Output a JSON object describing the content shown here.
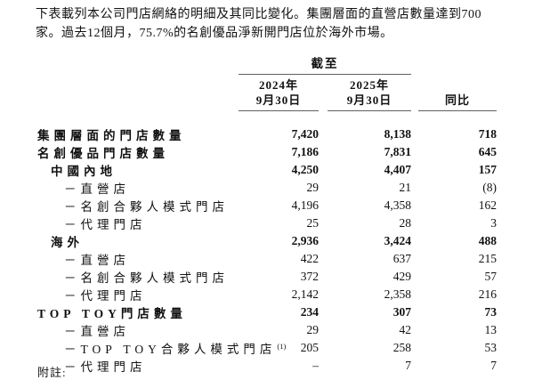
{
  "colors": {
    "text": "#111111",
    "rule": "#5f6062",
    "background": "#ffffff"
  },
  "intro": {
    "lines": [
      "下表載列本公司門店網絡的明細及其同比變化。集團層面的直營店數量達到700",
      "家。過去12個月，75.7%的名創優品淨新開門店位於海外市場。"
    ]
  },
  "table": {
    "spanner_label": "截至",
    "columns": [
      {
        "year": "2024年",
        "date": "9月30日"
      },
      {
        "year": "2025年",
        "date": "9月30日"
      },
      {
        "label": "同比"
      }
    ],
    "rows": [
      {
        "label": "集團層面的門店數量",
        "indent": 0,
        "bold": true,
        "v2024": "7,420",
        "v2025": "8,138",
        "yoy": "718"
      },
      {
        "label": "名創優品門店數量",
        "indent": 0,
        "bold": true,
        "v2024": "7,186",
        "v2025": "7,831",
        "yoy": "645"
      },
      {
        "label": "中國內地",
        "indent": 1,
        "bold": true,
        "v2024": "4,250",
        "v2025": "4,407",
        "yoy": "157"
      },
      {
        "label": "－直營店",
        "indent": 2,
        "bold": false,
        "v2024": "29",
        "v2025": "21",
        "yoy": "(8)"
      },
      {
        "label": "－名創合夥人模式門店",
        "indent": 2,
        "bold": false,
        "v2024": "4,196",
        "v2025": "4,358",
        "yoy": "162"
      },
      {
        "label": "－代理門店",
        "indent": 2,
        "bold": false,
        "v2024": "25",
        "v2025": "28",
        "yoy": "3"
      },
      {
        "label": "海外",
        "indent": 1,
        "bold": true,
        "v2024": "2,936",
        "v2025": "3,424",
        "yoy": "488"
      },
      {
        "label": "－直營店",
        "indent": 2,
        "bold": false,
        "v2024": "422",
        "v2025": "637",
        "yoy": "215"
      },
      {
        "label": "－名創合夥人模式門店",
        "indent": 2,
        "bold": false,
        "v2024": "372",
        "v2025": "429",
        "yoy": "57"
      },
      {
        "label": "－代理門店",
        "indent": 2,
        "bold": false,
        "v2024": "2,142",
        "v2025": "2,358",
        "yoy": "216"
      },
      {
        "label": "TOP TOY門店數量",
        "indent": 0,
        "bold": true,
        "v2024": "234",
        "v2025": "307",
        "yoy": "73"
      },
      {
        "label": "－直營店",
        "indent": 2,
        "bold": false,
        "v2024": "29",
        "v2025": "42",
        "yoy": "13"
      },
      {
        "label": "－TOP TOY合夥人模式門店",
        "note": "(1)",
        "indent": 2,
        "bold": false,
        "v2024": "205",
        "v2025": "258",
        "yoy": "53"
      },
      {
        "label": "－代理門店",
        "indent": 2,
        "bold": false,
        "v2024": "–",
        "v2025": "7",
        "yoy": "7"
      }
    ]
  },
  "footnote": {
    "label": "附註:"
  }
}
